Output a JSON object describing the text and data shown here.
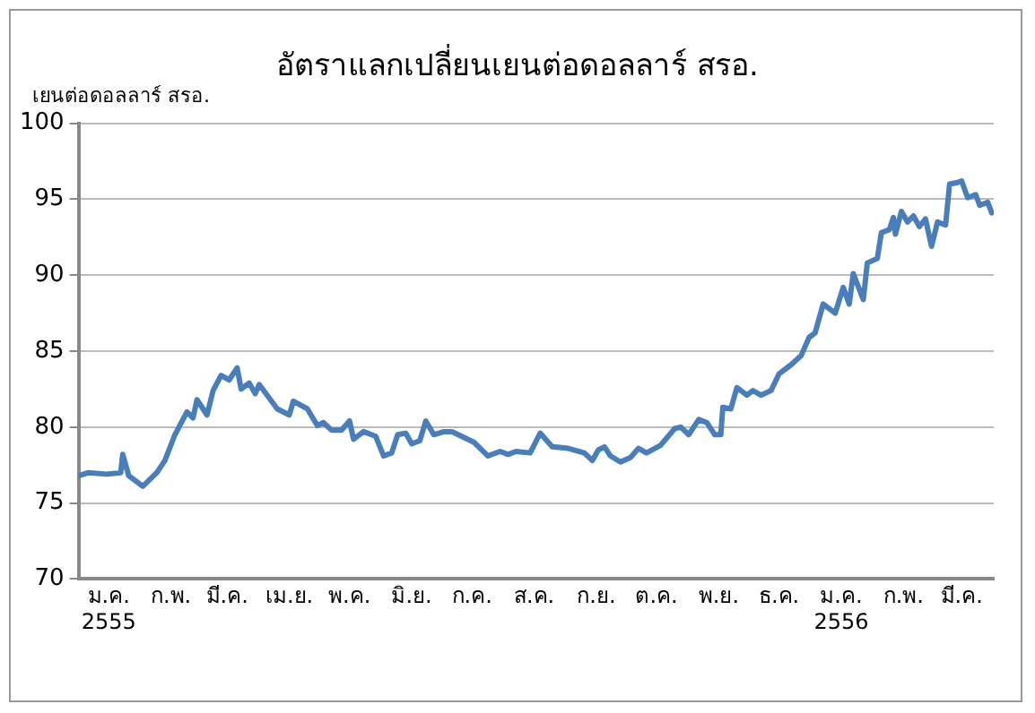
{
  "chart_data": {
    "type": "line",
    "title": "อัตราแลกเปลี่ยนเยนต่อดอลลาร์ สรอ.",
    "ylabel": "เยนต่อดอลลาร์ สรอ.",
    "x": [
      "2555-01-01",
      "2555-01-06",
      "2555-01-15",
      "2555-01-22",
      "2555-01-23",
      "2555-01-26",
      "2555-02-02",
      "2555-02-09",
      "2555-02-13",
      "2555-02-18",
      "2555-02-24",
      "2555-02-27",
      "2555-03-01",
      "2555-03-06",
      "2555-03-09",
      "2555-03-13",
      "2555-03-17",
      "2555-03-21",
      "2555-03-23",
      "2555-03-27",
      "2555-03-30",
      "2555-04-01",
      "2555-04-10",
      "2555-04-16",
      "2555-04-18",
      "2555-04-25",
      "2555-04-30",
      "2555-05-03",
      "2555-05-07",
      "2555-05-12",
      "2555-05-16",
      "2555-05-18",
      "2555-05-23",
      "2555-05-29",
      "2555-06-02",
      "2555-06-06",
      "2555-06-09",
      "2555-06-13",
      "2555-06-16",
      "2555-06-20",
      "2555-06-23",
      "2555-06-27",
      "2555-07-02",
      "2555-07-06",
      "2555-07-17",
      "2555-07-24",
      "2555-07-30",
      "2555-08-03",
      "2555-08-07",
      "2555-08-14",
      "2555-08-19",
      "2555-08-25",
      "2555-09-02",
      "2555-09-10",
      "2555-09-14",
      "2555-09-17",
      "2555-09-20",
      "2555-09-23",
      "2555-09-28",
      "2555-10-03",
      "2555-10-07",
      "2555-10-11",
      "2555-10-18",
      "2555-10-25",
      "2555-10-28",
      "2555-11-01",
      "2555-11-06",
      "2555-11-10",
      "2555-11-14",
      "2555-11-17",
      "2555-11-18",
      "2555-11-22",
      "2555-11-25",
      "2555-11-30",
      "2555-12-03",
      "2555-12-07",
      "2555-12-12",
      "2555-12-16",
      "2555-12-22",
      "2555-12-27",
      "2555-12-31",
      "2556-01-03",
      "2556-01-07",
      "2556-01-13",
      "2556-01-17",
      "2556-01-20",
      "2556-01-22",
      "2556-01-27",
      "2556-01-29",
      "2556-02-03",
      "2556-02-05",
      "2556-02-09",
      "2556-02-11",
      "2556-02-12",
      "2556-02-15",
      "2556-02-18",
      "2556-02-21",
      "2556-02-24",
      "2556-02-27",
      "2556-03-01",
      "2556-03-04",
      "2556-03-08",
      "2556-03-10",
      "2556-03-14",
      "2556-03-16",
      "2556-03-19",
      "2556-03-23",
      "2556-03-25",
      "2556-03-29",
      "2556-03-31"
    ],
    "series": [
      {
        "color": "#4a7ebb",
        "values": [
          76.8,
          77.0,
          76.9,
          77.0,
          78.2,
          76.8,
          76.1,
          77.0,
          77.8,
          79.5,
          81.0,
          80.6,
          81.8,
          80.8,
          82.4,
          83.4,
          83.1,
          83.9,
          82.5,
          82.9,
          82.2,
          82.8,
          81.2,
          80.8,
          81.7,
          81.2,
          80.1,
          80.3,
          79.8,
          79.8,
          80.4,
          79.2,
          79.7,
          79.4,
          78.1,
          78.3,
          79.5,
          79.6,
          78.9,
          79.1,
          80.4,
          79.5,
          79.7,
          79.7,
          79.0,
          78.1,
          78.4,
          78.2,
          78.4,
          78.3,
          79.6,
          78.7,
          78.6,
          78.3,
          77.8,
          78.5,
          78.7,
          78.1,
          77.7,
          78.0,
          78.6,
          78.3,
          78.8,
          79.9,
          80.0,
          79.5,
          80.5,
          80.3,
          79.5,
          79.5,
          81.3,
          81.2,
          82.6,
          82.1,
          82.4,
          82.1,
          82.4,
          83.5,
          84.1,
          84.7,
          85.9,
          86.2,
          88.1,
          87.5,
          89.2,
          88.1,
          90.1,
          88.4,
          90.8,
          91.1,
          92.8,
          93.0,
          93.8,
          92.7,
          94.2,
          93.5,
          93.9,
          93.2,
          93.7,
          91.9,
          93.5,
          93.3,
          96.0,
          96.1,
          96.2,
          95.1,
          95.3,
          94.6,
          94.8,
          94.1
        ]
      }
    ],
    "xlim": [
      "2555-01-01",
      "2556-04-01"
    ],
    "xticks": [
      {
        "value": "2555-01-16",
        "label": "ม.ค.\n2555"
      },
      {
        "value": "2555-02-16",
        "label": "ก.พ."
      },
      {
        "value": "2555-03-16",
        "label": "มี.ค."
      },
      {
        "value": "2555-04-16",
        "label": "เม.ย."
      },
      {
        "value": "2555-05-16",
        "label": "พ.ค."
      },
      {
        "value": "2555-06-16",
        "label": "มิ.ย."
      },
      {
        "value": "2555-07-16",
        "label": "ก.ค."
      },
      {
        "value": "2555-08-16",
        "label": "ส.ค."
      },
      {
        "value": "2555-09-16",
        "label": "ก.ย."
      },
      {
        "value": "2555-10-16",
        "label": "ต.ค."
      },
      {
        "value": "2555-11-16",
        "label": "พ.ย."
      },
      {
        "value": "2555-12-16",
        "label": "ธ.ค."
      },
      {
        "value": "2556-01-16",
        "label": "ม.ค.\n2556"
      },
      {
        "value": "2556-02-16",
        "label": "ก.พ."
      },
      {
        "value": "2556-03-16",
        "label": "มี.ค."
      }
    ],
    "ylim": [
      70,
      100
    ],
    "yticks": [
      70,
      75,
      80,
      85,
      90,
      95,
      100
    ],
    "grid": "y",
    "legend": false,
    "marker": "none",
    "line_style": "solid"
  }
}
